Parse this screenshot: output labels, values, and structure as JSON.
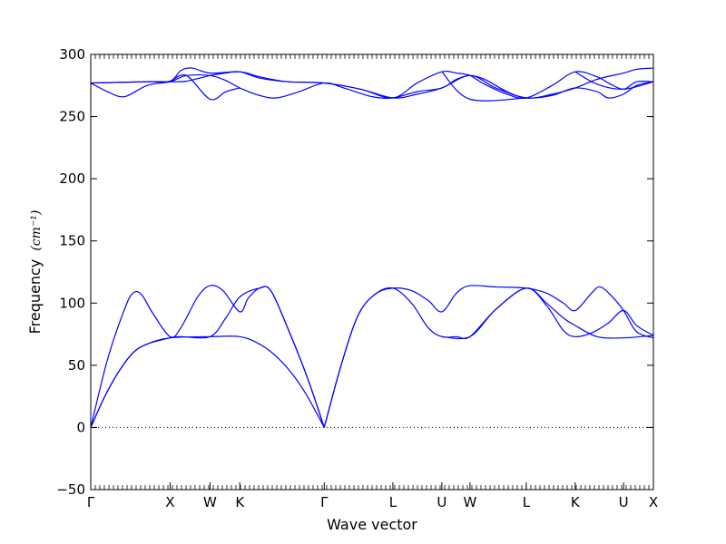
{
  "chart_data": {
    "type": "line",
    "title": "",
    "xlabel": "Wave vector",
    "ylabel": "Frequency",
    "ylabel_unit": "(cm⁻¹)",
    "ylim": [
      -50,
      300
    ],
    "yticks": [
      -50,
      0,
      50,
      100,
      150,
      200,
      250,
      300
    ],
    "xlim": [
      0,
      1
    ],
    "grid": false,
    "legend": "none",
    "line_color": "#0000ff",
    "zero_line_color": "#000000",
    "high_symmetry_points": [
      {
        "label": "Γ",
        "x": 0.0
      },
      {
        "label": "X",
        "x": 0.141
      },
      {
        "label": "W",
        "x": 0.212
      },
      {
        "label": "K",
        "x": 0.265
      },
      {
        "label": "Γ",
        "x": 0.415
      },
      {
        "label": "L",
        "x": 0.537
      },
      {
        "label": "U",
        "x": 0.624
      },
      {
        "label": "W",
        "x": 0.674
      },
      {
        "label": "L",
        "x": 0.774
      },
      {
        "label": "K",
        "x": 0.861
      },
      {
        "label": "U",
        "x": 0.947
      },
      {
        "label": "X",
        "x": 1.0
      }
    ],
    "series": [
      {
        "values": [
          [
            0,
            0
          ],
          [
            0.025,
            25
          ],
          [
            0.05,
            45
          ],
          [
            0.075,
            60
          ],
          [
            0.1,
            67
          ],
          [
            0.141,
            72
          ],
          [
            0.212,
            73
          ],
          [
            0.265,
            73
          ],
          [
            0.3,
            67
          ],
          [
            0.33,
            57
          ],
          [
            0.36,
            42
          ],
          [
            0.385,
            25
          ],
          [
            0.415,
            0
          ]
        ]
      },
      {
        "values": [
          [
            0,
            0
          ],
          [
            0.03,
            55
          ],
          [
            0.06,
            95
          ],
          [
            0.075,
            108
          ],
          [
            0.09,
            107
          ],
          [
            0.11,
            92
          ],
          [
            0.141,
            73
          ],
          [
            0.16,
            80
          ],
          [
            0.19,
            105
          ],
          [
            0.212,
            114
          ],
          [
            0.235,
            110
          ],
          [
            0.265,
            93
          ],
          [
            0.28,
            104
          ],
          [
            0.3,
            112
          ],
          [
            0.32,
            110
          ],
          [
            0.35,
            80
          ],
          [
            0.385,
            40
          ],
          [
            0.415,
            0
          ]
        ]
      },
      {
        "values": [
          [
            0,
            0
          ],
          [
            0.025,
            25
          ],
          [
            0.05,
            45
          ],
          [
            0.075,
            60
          ],
          [
            0.1,
            67
          ],
          [
            0.141,
            72
          ],
          [
            0.16,
            73
          ],
          [
            0.212,
            73
          ],
          [
            0.24,
            88
          ],
          [
            0.265,
            105
          ],
          [
            0.3,
            112
          ],
          [
            0.32,
            110
          ],
          [
            0.35,
            80
          ],
          [
            0.385,
            40
          ],
          [
            0.415,
            0
          ]
        ]
      },
      {
        "values": [
          [
            0.415,
            0
          ],
          [
            0.445,
            50
          ],
          [
            0.475,
            90
          ],
          [
            0.505,
            107
          ],
          [
            0.537,
            112
          ],
          [
            0.57,
            110
          ],
          [
            0.6,
            102
          ],
          [
            0.624,
            93
          ],
          [
            0.65,
            108
          ],
          [
            0.674,
            114
          ],
          [
            0.72,
            113
          ],
          [
            0.774,
            112
          ],
          [
            0.81,
            108
          ],
          [
            0.84,
            100
          ],
          [
            0.861,
            94
          ],
          [
            0.89,
            108
          ],
          [
            0.905,
            113
          ],
          [
            0.925,
            106
          ],
          [
            0.947,
            94
          ],
          [
            0.97,
            77
          ],
          [
            1.0,
            72
          ]
        ]
      },
      {
        "values": [
          [
            0.415,
            0
          ],
          [
            0.445,
            50
          ],
          [
            0.475,
            90
          ],
          [
            0.505,
            107
          ],
          [
            0.537,
            112
          ],
          [
            0.57,
            100
          ],
          [
            0.6,
            80
          ],
          [
            0.624,
            73
          ],
          [
            0.65,
            73
          ],
          [
            0.674,
            73
          ],
          [
            0.72,
            95
          ],
          [
            0.774,
            112
          ],
          [
            0.81,
            98
          ],
          [
            0.84,
            78
          ],
          [
            0.861,
            73
          ],
          [
            0.89,
            76
          ],
          [
            0.92,
            84
          ],
          [
            0.947,
            94
          ],
          [
            0.97,
            82
          ],
          [
            1.0,
            74
          ]
        ]
      },
      {
        "values": [
          [
            0.624,
            73
          ],
          [
            0.674,
            73
          ],
          [
            0.72,
            95
          ],
          [
            0.774,
            112
          ],
          [
            0.81,
            100
          ],
          [
            0.84,
            88
          ],
          [
            0.861,
            82
          ],
          [
            0.9,
            73
          ],
          [
            0.947,
            72
          ],
          [
            1.0,
            74
          ]
        ]
      },
      {
        "values": [
          [
            0,
            277
          ],
          [
            0.03,
            270
          ],
          [
            0.06,
            266
          ],
          [
            0.1,
            275
          ],
          [
            0.141,
            278
          ],
          [
            0.17,
            283
          ],
          [
            0.212,
            283
          ],
          [
            0.24,
            279
          ],
          [
            0.265,
            273
          ],
          [
            0.3,
            267
          ],
          [
            0.33,
            265
          ],
          [
            0.37,
            270
          ],
          [
            0.415,
            277
          ],
          [
            0.45,
            273
          ],
          [
            0.5,
            266
          ],
          [
            0.537,
            265
          ],
          [
            0.58,
            270
          ],
          [
            0.624,
            273
          ],
          [
            0.65,
            280
          ],
          [
            0.674,
            283
          ],
          [
            0.7,
            280
          ],
          [
            0.74,
            270
          ],
          [
            0.774,
            265
          ],
          [
            0.82,
            267
          ],
          [
            0.861,
            273
          ],
          [
            0.9,
            270
          ],
          [
            0.92,
            265
          ],
          [
            0.947,
            268
          ],
          [
            0.97,
            275
          ],
          [
            1.0,
            278
          ]
        ]
      },
      {
        "values": [
          [
            0,
            277
          ],
          [
            0.05,
            277.5
          ],
          [
            0.1,
            278
          ],
          [
            0.141,
            278.5
          ],
          [
            0.16,
            287
          ],
          [
            0.18,
            289
          ],
          [
            0.212,
            285
          ],
          [
            0.265,
            286
          ],
          [
            0.3,
            282
          ],
          [
            0.35,
            278
          ],
          [
            0.415,
            277
          ],
          [
            0.48,
            272
          ],
          [
            0.537,
            265
          ],
          [
            0.58,
            277
          ],
          [
            0.624,
            286
          ],
          [
            0.65,
            285
          ],
          [
            0.674,
            283
          ],
          [
            0.7,
            276
          ],
          [
            0.74,
            268
          ],
          [
            0.774,
            265
          ],
          [
            0.82,
            275
          ],
          [
            0.861,
            286
          ],
          [
            0.9,
            282
          ],
          [
            0.92,
            277
          ],
          [
            0.947,
            272
          ],
          [
            0.97,
            278
          ],
          [
            1.0,
            278
          ]
        ]
      },
      {
        "values": [
          [
            0,
            277
          ],
          [
            0.1,
            278
          ],
          [
            0.141,
            278
          ],
          [
            0.17,
            278.5
          ],
          [
            0.212,
            283
          ],
          [
            0.24,
            285
          ],
          [
            0.265,
            286
          ],
          [
            0.3,
            281
          ],
          [
            0.35,
            278
          ],
          [
            0.415,
            277
          ],
          [
            0.48,
            272
          ],
          [
            0.537,
            265
          ],
          [
            0.58,
            268
          ],
          [
            0.624,
            273
          ],
          [
            0.674,
            283
          ],
          [
            0.72,
            273
          ],
          [
            0.774,
            265
          ],
          [
            0.82,
            268
          ],
          [
            0.861,
            273
          ],
          [
            0.9,
            280
          ],
          [
            0.947,
            285
          ],
          [
            0.97,
            288
          ],
          [
            1.0,
            289
          ]
        ]
      },
      {
        "values": [
          [
            0.141,
            278
          ],
          [
            0.17,
            283
          ],
          [
            0.212,
            264
          ],
          [
            0.24,
            270
          ],
          [
            0.265,
            273
          ]
        ]
      },
      {
        "values": [
          [
            0.624,
            286
          ],
          [
            0.674,
            264
          ],
          [
            0.774,
            265
          ]
        ]
      },
      {
        "values": [
          [
            0.861,
            286
          ],
          [
            0.9,
            276
          ],
          [
            0.947,
            272
          ],
          [
            1.0,
            278
          ]
        ]
      }
    ]
  }
}
